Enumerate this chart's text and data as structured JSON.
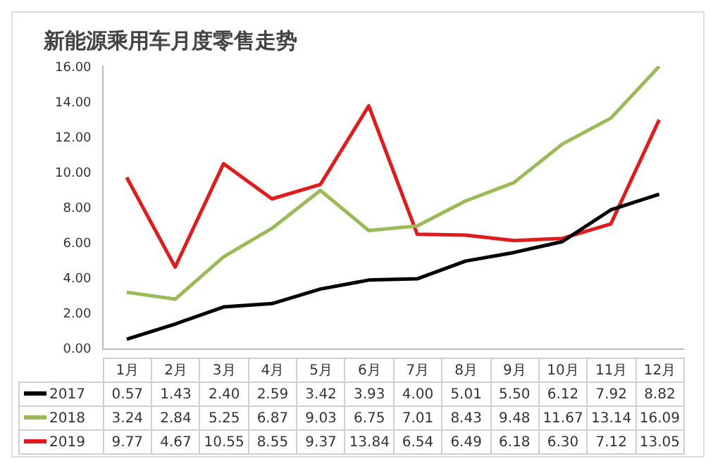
{
  "chart_data": {
    "type": "line",
    "title": "新能源乘用车月度零售走势",
    "categories": [
      "1月",
      "2月",
      "3月",
      "4月",
      "5月",
      "6月",
      "7月",
      "8月",
      "9月",
      "10月",
      "11月",
      "12月"
    ],
    "series": [
      {
        "name": "2017",
        "color": "#000000",
        "values": [
          0.57,
          1.43,
          2.4,
          2.59,
          3.42,
          3.93,
          4.0,
          5.01,
          5.5,
          6.12,
          7.92,
          8.82
        ],
        "value_labels": [
          "0.57",
          "1.43",
          "2.40",
          "2.59",
          "3.42",
          "3.93",
          "4.00",
          "5.01",
          "5.50",
          "6.12",
          "7.92",
          "8.82"
        ]
      },
      {
        "name": "2018",
        "color": "#9bbb59",
        "values": [
          3.24,
          2.84,
          5.25,
          6.87,
          9.03,
          6.75,
          7.01,
          8.43,
          9.48,
          11.67,
          13.14,
          16.09
        ],
        "value_labels": [
          "3.24",
          "2.84",
          "5.25",
          "6.87",
          "9.03",
          "6.75",
          "7.01",
          "8.43",
          "9.48",
          "11.67",
          "13.14",
          "16.09"
        ]
      },
      {
        "name": "2019",
        "color": "#e31a1c",
        "values": [
          9.77,
          4.67,
          10.55,
          8.55,
          9.37,
          13.84,
          6.54,
          6.49,
          6.18,
          6.3,
          7.12,
          13.05
        ],
        "value_labels": [
          "9.77",
          "4.67",
          "10.55",
          "8.55",
          "9.37",
          "13.84",
          "6.54",
          "6.49",
          "6.18",
          "6.30",
          "7.12",
          "13.05"
        ]
      }
    ],
    "ylim": [
      0,
      16.1
    ],
    "yticks": [
      {
        "value": 0,
        "label": "0.00"
      },
      {
        "value": 2,
        "label": "2.00"
      },
      {
        "value": 4,
        "label": "4.00"
      },
      {
        "value": 6,
        "label": "6.00"
      },
      {
        "value": 8,
        "label": "8.00"
      },
      {
        "value": 10,
        "label": "10.00"
      },
      {
        "value": 12,
        "label": "12.00"
      },
      {
        "value": 14,
        "label": "14.00"
      },
      {
        "value": 16,
        "label": "16.00"
      }
    ],
    "grid": false,
    "legend": "bottom",
    "marker": "none",
    "line_style": "solid"
  }
}
